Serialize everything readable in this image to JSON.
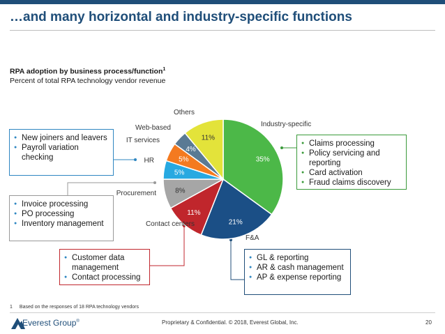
{
  "header": {
    "title": "…and many horizontal and industry-specific functions"
  },
  "chart_data": {
    "type": "pie",
    "title": "RPA adoption by business process/function",
    "title_superscript": "1",
    "subtitle": "Percent of total RPA technology vendor revenue",
    "slices": [
      {
        "name": "Industry-specific",
        "value": 35,
        "label": "35%",
        "color": "#4cb848",
        "label_color": "#ffffff"
      },
      {
        "name": "F&A",
        "value": 21,
        "label": "21%",
        "color": "#1b4f86",
        "label_color": "#ffffff"
      },
      {
        "name": "Contact centers",
        "value": 11,
        "label": "11%",
        "color": "#c0262c",
        "label_color": "#ffffff"
      },
      {
        "name": "Procurement",
        "value": 8,
        "label": "8%",
        "color": "#a6a6a6",
        "label_color": "#333333"
      },
      {
        "name": "HR",
        "value": 5,
        "label": "5%",
        "color": "#27a9e1",
        "label_color": "#ffffff"
      },
      {
        "name": "IT services",
        "value": 5,
        "label": "5%",
        "color": "#f47a20",
        "label_color": "#ffffff"
      },
      {
        "name": "Web-based",
        "value": 4,
        "label": "4%",
        "color": "#5a7a94",
        "label_color": "#ffffff"
      },
      {
        "name": "Others",
        "value": 11,
        "label": "11%",
        "color": "#e3e33a",
        "label_color": "#333333"
      }
    ]
  },
  "callouts": {
    "horizontal_hr": {
      "items": [
        "New joiners and leavers",
        "Payroll variation checking"
      ]
    },
    "industry": {
      "items": [
        "Claims processing",
        "Policy servicing and reporting",
        "Card activation",
        "Fraud claims discovery"
      ]
    },
    "procurement": {
      "items": [
        "Invoice processing",
        "PO processing",
        "Inventory management"
      ]
    },
    "contact": {
      "items": [
        "Customer data management",
        "Contact processing"
      ]
    },
    "fa": {
      "items": [
        "GL & reporting",
        "AR & cash management",
        "AP & expense reporting"
      ]
    }
  },
  "footer": {
    "footnote_number": "1",
    "footnote_text": "Based on the responses of 18 RPA technology vendors",
    "logo_text": "Everest Group",
    "logo_mark": "®",
    "confidential": "Proprietary & Confidential. © 2018, Everest Global, Inc.",
    "page_number": "20"
  },
  "colors": {
    "brand": "#1f4e79",
    "bullet": "#2e86c1"
  }
}
